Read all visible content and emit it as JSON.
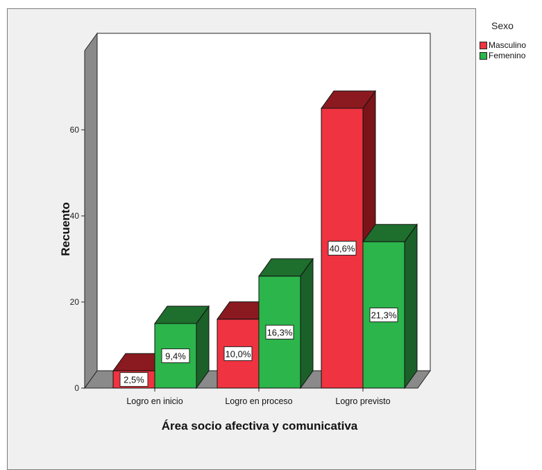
{
  "chart_data": {
    "type": "bar",
    "title": "",
    "xlabel": "Área socio afectiva y comunicativa",
    "ylabel": "Recuento",
    "categories": [
      "Logro en inicio",
      "Logro en proceso",
      "Logro previsto"
    ],
    "series": [
      {
        "name": "Masculino",
        "values": [
          4,
          16,
          65
        ],
        "labels": [
          "2,5%",
          "10,0%",
          "40,6%"
        ],
        "color": "#ef3340",
        "top_color": "#8b1a20",
        "side_color": "#7a1419"
      },
      {
        "name": "Femenino",
        "values": [
          15,
          26,
          34
        ],
        "labels": [
          "9,4%",
          "16,3%",
          "21,3%"
        ],
        "color": "#2bb54b",
        "top_color": "#1e6e2e",
        "side_color": "#1b6028"
      }
    ],
    "yticks": [
      0,
      20,
      40,
      60
    ],
    "ylim": [
      0,
      70
    ],
    "legend": {
      "title": "Sexo",
      "placement": "right"
    },
    "grid": false,
    "style": "3d"
  }
}
